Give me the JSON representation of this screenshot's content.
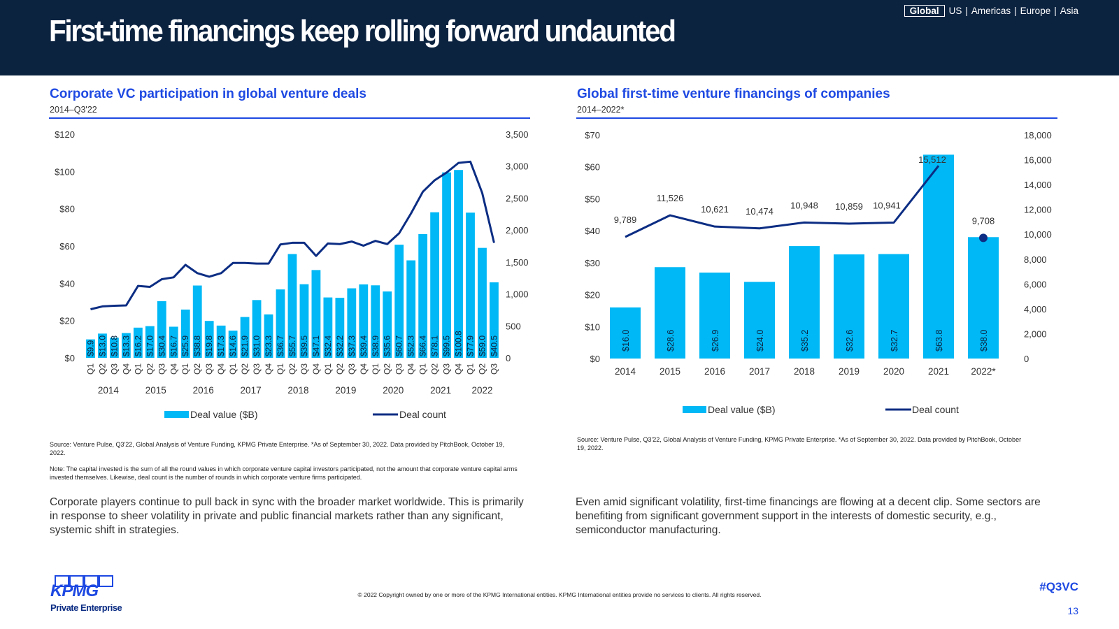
{
  "header": {
    "title": "First-time financings keep rolling forward undaunted",
    "regions": [
      "Global",
      "US",
      "Americas",
      "Europe",
      "Asia"
    ],
    "active_region": "Global"
  },
  "left": {
    "title": "Corporate VC participation in global venture deals",
    "subtitle": "2014–Q3'22",
    "source": "Source: Venture Pulse, Q3'22, Global Analysis of Venture Funding, KPMG Private Enterprise. *As of September 30, 2022. Data provided by PitchBook, October 19, 2022.",
    "note": "Note: The capital invested is the sum of all the round values in which corporate venture capital investors participated, not the amount that corporate venture capital arms invested themselves. Likewise, deal count is the number of rounds in which corporate venture firms participated.",
    "commentary": "Corporate players continue to pull back in sync with the broader market worldwide. This is primarily in response to sheer volatility in private and public financial markets rather than any significant, systemic shift in strategies."
  },
  "right": {
    "title": "Global first-time venture financings of companies",
    "subtitle": "2014–2022*",
    "source": "Source: Venture Pulse, Q3'22, Global Analysis of Venture Funding, KPMG Private Enterprise. *As of September 30, 2022. Data provided by PitchBook, October 19, 2022.",
    "commentary": "Even amid significant volatility, first-time financings are flowing at a decent clip. Some sectors are benefiting from significant government support in the interests of domestic security, e.g., semiconductor manufacturing."
  },
  "footer": {
    "copyright": "© 2022 Copyright owned by one or more of the KPMG International entities. KPMG International entities provide no services to clients. All rights reserved.",
    "hashtag": "#Q3VC",
    "page": "13",
    "logo_text": "KPMG",
    "logo_sub": "Private Enterprise"
  },
  "colors": {
    "bar": "#00b8f5",
    "line": "#0c2d83",
    "accent": "#1e49e2",
    "header_bg": "#0c2340"
  },
  "chart_data": [
    {
      "type": "bar",
      "title": "Corporate VC participation in global venture deals",
      "categories": [
        "Q1",
        "Q2",
        "Q3",
        "Q4",
        "Q1",
        "Q2",
        "Q3",
        "Q4",
        "Q1",
        "Q2",
        "Q3",
        "Q4",
        "Q1",
        "Q2",
        "Q3",
        "Q4",
        "Q1",
        "Q2",
        "Q3",
        "Q4",
        "Q1",
        "Q2",
        "Q3",
        "Q4",
        "Q1",
        "Q2",
        "Q3",
        "Q4",
        "Q1",
        "Q2",
        "Q3",
        "Q4",
        "Q1",
        "Q2",
        "Q3"
      ],
      "year_labels": [
        "2014",
        "2015",
        "2016",
        "2017",
        "2018",
        "2019",
        "2020",
        "2021",
        "2022"
      ],
      "series": [
        {
          "name": "Deal value ($B)",
          "axis": "left",
          "values": [
            9.9,
            13.0,
            10.8,
            13.3,
            16.2,
            17.0,
            30.4,
            16.7,
            25.9,
            38.8,
            19.8,
            17.3,
            14.6,
            21.9,
            31.0,
            23.3,
            36.7,
            55.7,
            39.5,
            47.1,
            32.4,
            32.2,
            37.3,
            39.4,
            38.9,
            35.6,
            60.7,
            52.3,
            66.4,
            78.1,
            99.5,
            100.8,
            77.9,
            59.0,
            40.5
          ]
        },
        {
          "name": "Deal count",
          "axis": "right",
          "values": [
            760,
            805,
            815,
            820,
            1125,
            1110,
            1230,
            1260,
            1455,
            1325,
            1270,
            1325,
            1485,
            1485,
            1475,
            1475,
            1775,
            1800,
            1800,
            1595,
            1790,
            1780,
            1820,
            1755,
            1830,
            1780,
            1950,
            2260,
            2600,
            2780,
            2900,
            3050,
            3070,
            2580,
            1800
          ]
        }
      ],
      "y_left": {
        "ticks": [
          "$0",
          "$20",
          "$40",
          "$60",
          "$80",
          "$100",
          "$120"
        ],
        "range": [
          0,
          120
        ]
      },
      "y_right": {
        "ticks": [
          "0",
          "500",
          "1,000",
          "1,500",
          "2,000",
          "2,500",
          "3,000",
          "3,500"
        ],
        "range": [
          0,
          3500
        ]
      },
      "legend": [
        "Deal value ($B)",
        "Deal count"
      ],
      "legend_position": "bottom"
    },
    {
      "type": "bar",
      "title": "Global first-time venture financings of companies",
      "categories": [
        "2014",
        "2015",
        "2016",
        "2017",
        "2018",
        "2019",
        "2020",
        "2021",
        "2022*"
      ],
      "series": [
        {
          "name": "Deal value ($B)",
          "axis": "left",
          "values": [
            16.0,
            28.6,
            26.9,
            24.0,
            35.2,
            32.6,
            32.7,
            63.8,
            38.0
          ],
          "labels": [
            "$16.0",
            "$28.6",
            "$26.9",
            "$24.0",
            "$35.2",
            "$32.6",
            "$32.7",
            "$63.8",
            "$38.0"
          ]
        },
        {
          "name": "Deal count",
          "axis": "right",
          "values": [
            9789,
            11526,
            10621,
            10474,
            10948,
            10859,
            10941,
            15512,
            9708
          ],
          "labels": [
            "9,789",
            "11,526",
            "10,621",
            "10,474",
            "10,948",
            "10,859",
            "10,941",
            "15,512",
            "9,708"
          ]
        }
      ],
      "y_left": {
        "ticks": [
          "$0",
          "$10",
          "$20",
          "$30",
          "$40",
          "$50",
          "$60",
          "$70"
        ],
        "range": [
          0,
          70
        ]
      },
      "y_right": {
        "ticks": [
          "0",
          "2,000",
          "4,000",
          "6,000",
          "8,000",
          "10,000",
          "12,000",
          "14,000",
          "16,000",
          "18,000"
        ],
        "range": [
          0,
          18000
        ]
      },
      "legend": [
        "Deal value ($B)",
        "Deal count"
      ],
      "legend_position": "bottom",
      "annotation": "2022 deal count shown as a point"
    }
  ]
}
